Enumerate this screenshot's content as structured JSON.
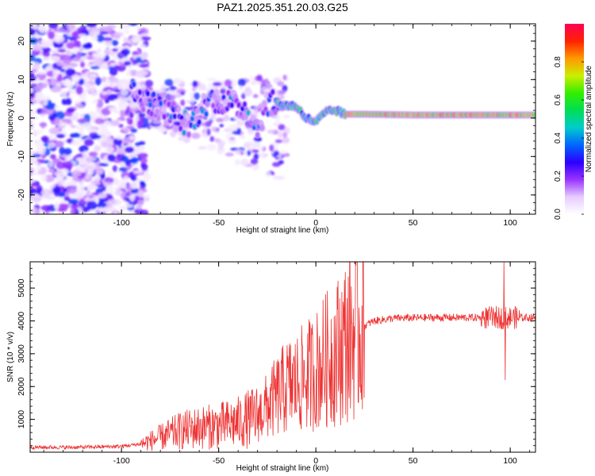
{
  "title": "PAZ1.2025.351.20.03.G25",
  "chart_data": [
    {
      "type": "heatmap",
      "name": "spectrogram",
      "title": "PAZ1.2025.351.20.03.G25",
      "xlabel": "Height of straight line (km)",
      "ylabel": "Frequency (Hz)",
      "xlim": [
        -147,
        113
      ],
      "ylim": [
        -25,
        24.5
      ],
      "xticks": [
        -100,
        -50,
        0,
        50,
        100
      ],
      "yticks": [
        -20,
        -10,
        0,
        10,
        20
      ],
      "colorbar": {
        "label": "Normalized spectral amplitude",
        "range": [
          0,
          1
        ],
        "ticks": [
          "0.0",
          "0.2",
          "0.4",
          "0.6",
          "0.8"
        ],
        "colors": [
          "#ffffff",
          "#e6ccff",
          "#9933ff",
          "#2b00ff",
          "#0066ff",
          "#00cccc",
          "#00dd55",
          "#33ee00",
          "#ccee00",
          "#ff9900",
          "#ff2200",
          "#ff0055"
        ]
      },
      "ridge": [
        {
          "x": -95,
          "y": 7
        },
        {
          "x": -85,
          "y": 4
        },
        {
          "x": -75,
          "y": 1
        },
        {
          "x": -65,
          "y": -2
        },
        {
          "x": -55,
          "y": 5
        },
        {
          "x": -45,
          "y": 4
        },
        {
          "x": -35,
          "y": 2
        },
        {
          "x": -30,
          "y": -3
        },
        {
          "x": -25,
          "y": 4
        },
        {
          "x": -18,
          "y": 3.5
        },
        {
          "x": -10,
          "y": 3
        },
        {
          "x": -5,
          "y": 0
        },
        {
          "x": 0,
          "y": -1
        },
        {
          "x": 5,
          "y": 1.5
        },
        {
          "x": 10,
          "y": 2
        },
        {
          "x": 15,
          "y": 1
        },
        {
          "x": 25,
          "y": 1
        },
        {
          "x": 50,
          "y": 0.8
        },
        {
          "x": 75,
          "y": 0.8
        },
        {
          "x": 100,
          "y": 0.8
        },
        {
          "x": 113,
          "y": 0.8
        }
      ]
    },
    {
      "type": "line",
      "name": "snr",
      "xlabel": "Height of straight line (km)",
      "ylabel": "SNR (10 * v/v)",
      "xlim": [
        -147,
        113
      ],
      "ylim": [
        0,
        5800
      ],
      "xticks": [
        -100,
        -50,
        0,
        50,
        100
      ],
      "yticks": [
        1000,
        2000,
        3000,
        4000,
        5000
      ],
      "color": "#ee3333",
      "envelope": [
        {
          "x": -147,
          "y": 150
        },
        {
          "x": -120,
          "y": 150
        },
        {
          "x": -100,
          "y": 180
        },
        {
          "x": -90,
          "y": 250
        },
        {
          "x": -80,
          "y": 450
        },
        {
          "x": -70,
          "y": 650
        },
        {
          "x": -60,
          "y": 750
        },
        {
          "x": -50,
          "y": 800
        },
        {
          "x": -40,
          "y": 900
        },
        {
          "x": -30,
          "y": 1100
        },
        {
          "x": -25,
          "y": 1400
        },
        {
          "x": -20,
          "y": 1700
        },
        {
          "x": -15,
          "y": 2000
        },
        {
          "x": -10,
          "y": 2100
        },
        {
          "x": -5,
          "y": 2300
        },
        {
          "x": 0,
          "y": 2500
        },
        {
          "x": 5,
          "y": 2800
        },
        {
          "x": 10,
          "y": 3000
        },
        {
          "x": 15,
          "y": 3400
        },
        {
          "x": 20,
          "y": 3650
        },
        {
          "x": 25,
          "y": 3850
        },
        {
          "x": 30,
          "y": 4000
        },
        {
          "x": 40,
          "y": 4080
        },
        {
          "x": 60,
          "y": 4100
        },
        {
          "x": 80,
          "y": 4100
        },
        {
          "x": 100,
          "y": 4100
        },
        {
          "x": 113,
          "y": 4100
        }
      ],
      "features": [
        {
          "x": -25,
          "y": 3800,
          "note": "spike"
        },
        {
          "x": -20,
          "y": 3700,
          "note": "spike"
        },
        {
          "x": -4,
          "y": 4200,
          "note": "spike"
        },
        {
          "x": 97,
          "y": 5800,
          "note": "max spike"
        },
        {
          "x": 97.5,
          "y": 2200,
          "note": "min dip"
        }
      ]
    }
  ]
}
